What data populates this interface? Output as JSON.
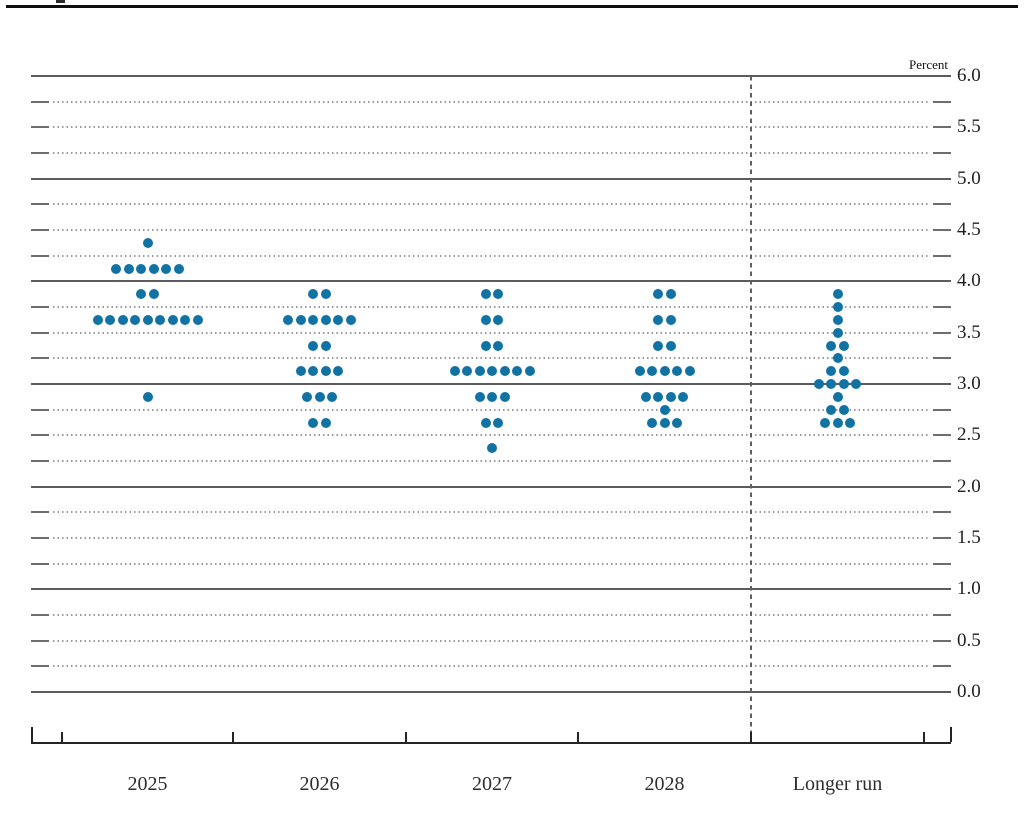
{
  "page": {
    "cropped_header_fragment": ""
  },
  "chart_data": {
    "type": "scatter",
    "variant": "fomc-dot-plot",
    "title": "",
    "unit_label": "Percent",
    "xlabel": "",
    "ylabel": "Percent",
    "ylim": [
      0.0,
      6.0
    ],
    "y_label_step": 0.5,
    "y_grid_step": 0.25,
    "grid": true,
    "legend_position": "none",
    "y_tick_labels": [
      "6.0",
      "5.5",
      "5.0",
      "4.5",
      "4.0",
      "3.5",
      "3.0",
      "2.5",
      "2.0",
      "1.5",
      "1.0",
      "0.5",
      "0.0"
    ],
    "categories": [
      "2025",
      "2026",
      "2027",
      "2028",
      "Longer run"
    ],
    "separator_before_category": "Longer run",
    "dot_color": "#1173a3",
    "series": [
      {
        "name": "2025",
        "dots": [
          {
            "value": 4.375,
            "count": 1
          },
          {
            "value": 4.125,
            "count": 6
          },
          {
            "value": 3.875,
            "count": 2
          },
          {
            "value": 3.625,
            "count": 9
          },
          {
            "value": 2.875,
            "count": 1
          }
        ]
      },
      {
        "name": "2026",
        "dots": [
          {
            "value": 3.875,
            "count": 2
          },
          {
            "value": 3.625,
            "count": 6
          },
          {
            "value": 3.375,
            "count": 2
          },
          {
            "value": 3.125,
            "count": 4
          },
          {
            "value": 2.875,
            "count": 3
          },
          {
            "value": 2.625,
            "count": 2
          }
        ]
      },
      {
        "name": "2027",
        "dots": [
          {
            "value": 3.875,
            "count": 2
          },
          {
            "value": 3.625,
            "count": 2
          },
          {
            "value": 3.375,
            "count": 2
          },
          {
            "value": 3.125,
            "count": 7
          },
          {
            "value": 2.875,
            "count": 3
          },
          {
            "value": 2.625,
            "count": 2
          },
          {
            "value": 2.375,
            "count": 1
          }
        ]
      },
      {
        "name": "2028",
        "dots": [
          {
            "value": 3.875,
            "count": 2
          },
          {
            "value": 3.625,
            "count": 2
          },
          {
            "value": 3.375,
            "count": 2
          },
          {
            "value": 3.125,
            "count": 5
          },
          {
            "value": 2.875,
            "count": 4
          },
          {
            "value": 2.75,
            "count": 1
          },
          {
            "value": 2.625,
            "count": 3
          }
        ]
      },
      {
        "name": "Longer run",
        "dots": [
          {
            "value": 3.875,
            "count": 1
          },
          {
            "value": 3.75,
            "count": 1
          },
          {
            "value": 3.625,
            "count": 1
          },
          {
            "value": 3.5,
            "count": 1
          },
          {
            "value": 3.375,
            "count": 2
          },
          {
            "value": 3.25,
            "count": 1
          },
          {
            "value": 3.125,
            "count": 2
          },
          {
            "value": 3.0,
            "count": 4
          },
          {
            "value": 2.875,
            "count": 1
          },
          {
            "value": 2.75,
            "count": 2
          },
          {
            "value": 2.625,
            "count": 3
          }
        ]
      }
    ]
  }
}
